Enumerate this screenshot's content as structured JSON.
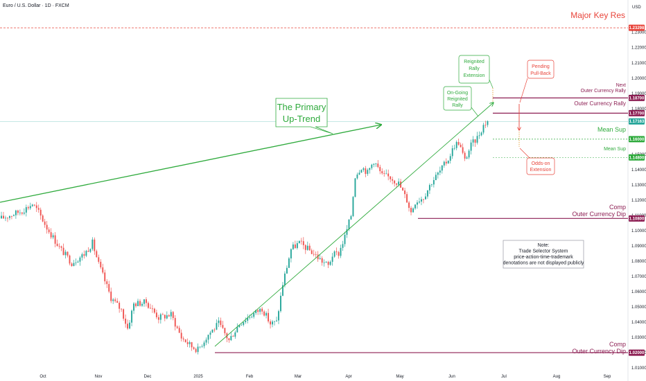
{
  "title": "Euro / U.S. Dollar · 1D · FXCM",
  "currency_label": "USD",
  "colors": {
    "up": "#26a69a",
    "down": "#ef5350",
    "trend": "#2eaa3c",
    "resistance": "#e8443a",
    "maroon": "#8c1d52",
    "note_border": "#9598a1"
  },
  "chart_data": {
    "type": "candlestick",
    "ylim": [
      1.0105,
      1.2385
    ],
    "y_ticks": [
      "1.23000",
      "1.22000",
      "1.21000",
      "1.20000",
      "1.19000",
      "1.18000",
      "1.15000",
      "1.14000",
      "1.13000",
      "1.12000",
      "1.11000",
      "1.10000",
      "1.09000",
      "1.08000",
      "1.07000",
      "1.06000",
      "1.05000",
      "1.04000",
      "1.03000",
      "1.02000",
      "1.01000"
    ],
    "x_ticks": [
      "Oct",
      "Nov",
      "Dec",
      "2025",
      "Feb",
      "Mar",
      "Apr",
      "May",
      "Jun",
      "Jul",
      "Aug",
      "Sep"
    ],
    "anchors": [
      [
        0,
        1.108
      ],
      [
        10,
        1.113
      ],
      [
        15,
        1.1175
      ],
      [
        18,
        1.112
      ],
      [
        22,
        1.102
      ],
      [
        28,
        1.089
      ],
      [
        34,
        1.079
      ],
      [
        40,
        1.0845
      ],
      [
        44,
        1.092
      ],
      [
        47,
        1.078
      ],
      [
        53,
        1.056
      ],
      [
        58,
        1.048
      ],
      [
        61,
        1.036
      ],
      [
        64,
        1.052
      ],
      [
        70,
        1.053
      ],
      [
        76,
        1.043
      ],
      [
        82,
        1.045
      ],
      [
        87,
        1.03
      ],
      [
        92,
        1.024
      ],
      [
        95,
        1.022
      ],
      [
        100,
        1.032
      ],
      [
        105,
        1.039
      ],
      [
        110,
        1.028
      ],
      [
        115,
        1.039
      ],
      [
        120,
        1.044
      ],
      [
        126,
        1.049
      ],
      [
        130,
        1.039
      ],
      [
        133,
        1.04
      ],
      [
        136,
        1.065
      ],
      [
        140,
        1.088
      ],
      [
        144,
        1.092
      ],
      [
        150,
        1.086
      ],
      [
        155,
        1.08
      ],
      [
        158,
        1.077
      ],
      [
        160,
        1.084
      ],
      [
        163,
        1.085
      ],
      [
        166,
        1.096
      ],
      [
        169,
        1.11
      ],
      [
        171,
        1.136
      ],
      [
        174,
        1.142
      ],
      [
        177,
        1.138
      ],
      [
        180,
        1.146
      ],
      [
        184,
        1.136
      ],
      [
        188,
        1.135
      ],
      [
        192,
        1.131
      ],
      [
        196,
        1.12
      ],
      [
        198,
        1.112
      ],
      [
        200,
        1.119
      ],
      [
        204,
        1.122
      ],
      [
        208,
        1.132
      ],
      [
        212,
        1.139
      ],
      [
        216,
        1.147
      ],
      [
        219,
        1.156
      ],
      [
        221,
        1.158
      ],
      [
        224,
        1.146
      ],
      [
        227,
        1.156
      ],
      [
        230,
        1.161
      ],
      [
        233,
        1.169
      ],
      [
        235,
        1.172
      ]
    ],
    "levels": {
      "major_key_res": "1.23298",
      "next_outer_rally": "1.18700",
      "outer_rally": "1.17700",
      "last_price": "1.17163",
      "mean_sup": "1.16000",
      "mean_sup_2": "1.14800",
      "comp_dip_upper": "1.10800",
      "comp_dip_lower": "1.02000"
    },
    "level_values": {
      "major_key_res": 1.23298,
      "next_outer_rally": 1.187,
      "outer_rally": 1.177,
      "last_price": 1.17163,
      "mean_sup": 1.16,
      "mean_sup_2": 1.148,
      "comp_dip_upper": 1.108,
      "comp_dip_lower": 1.02
    }
  },
  "annotations": {
    "primary_trend_line1": "The Primary",
    "primary_trend_line2": "Up-Trend",
    "major_key_res": "Major Key Res",
    "next_line1": "Next",
    "next_line2": "Outer Currency Rally",
    "outer_rally": "Outer Currency Rally",
    "mean_sup": "Mean Sup",
    "mean_sup_small": "Mean Sup",
    "comp1": "Comp",
    "comp_dip1": "Outer Currency Dip",
    "comp2": "Comp",
    "comp_dip2": "Outer Currency Dip",
    "reignited": [
      "Reignited",
      "Rally",
      "Extension"
    ],
    "ongoing": [
      "On-Going",
      "Reignited",
      "Rally"
    ],
    "pending": [
      "Pending",
      "Pull-Back"
    ],
    "oddson": [
      "Odds-on",
      "Extension"
    ],
    "note": [
      "Note:",
      "Trade Selector System",
      "price-action-time-trademark",
      "denotations are not displayed publicly"
    ]
  }
}
